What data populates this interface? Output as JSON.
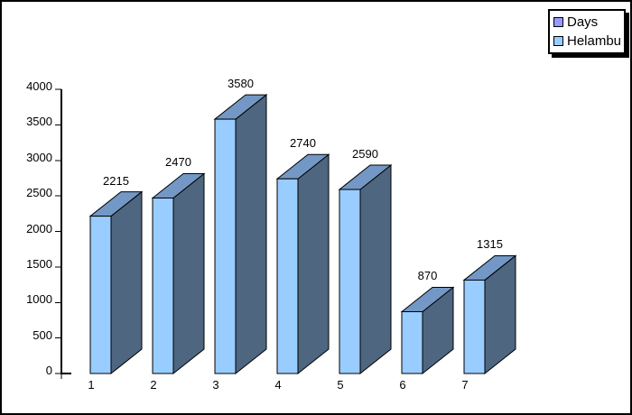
{
  "chart_data": {
    "type": "bar",
    "style": "3d-bar",
    "title": "",
    "xlabel": "",
    "ylabel": "",
    "categories": [
      "1",
      "2",
      "3",
      "4",
      "5",
      "6",
      "7"
    ],
    "series": [
      {
        "name": "Helambu",
        "color": "#99CCFF",
        "values": [
          2215,
          2470,
          3580,
          2740,
          2590,
          870,
          1315
        ]
      }
    ],
    "data_labels": [
      "2215",
      "2470",
      "3580",
      "2740",
      "2590",
      "870",
      "1315"
    ],
    "ylim": [
      0,
      4000
    ],
    "ytick_step": 500,
    "yticks": [
      0,
      500,
      1000,
      1500,
      2000,
      2500,
      3000,
      3500,
      4000
    ],
    "gridlines": false,
    "legend": {
      "position": "top-right",
      "entries": [
        {
          "label": "Days",
          "color": "#9999FF"
        },
        {
          "label": "Helambu",
          "color": "#99CCFF"
        }
      ]
    }
  },
  "colors": {
    "bar_front": "#99CCFF",
    "bar_top": "#7398C6",
    "bar_side": "#4E6680",
    "outline": "#000000",
    "background": "#FFFFFF",
    "canvas_border": "#000000"
  }
}
